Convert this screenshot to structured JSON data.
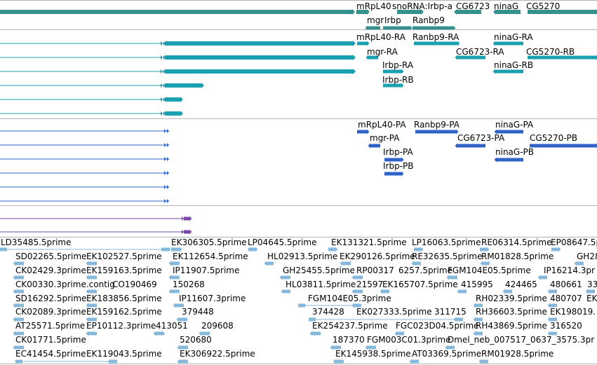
{
  "colors": {
    "gene": "#35918d",
    "rna": "#1aa0b0",
    "protein": "#2f63c8",
    "cds": "#7a49a8",
    "est": "#86b8dc",
    "divider": "#b4b4b4"
  },
  "gene_track": {
    "labels": [
      "mRpL40",
      "snoRNA:Irbp-a",
      "CG6723",
      "ninaG",
      "CG5270",
      "mgr",
      "Irbp",
      "Ranbp9"
    ]
  },
  "transcript_track": {
    "labels": [
      "mRpL40-RA",
      "Ranbp9-RA",
      "ninaG-RA",
      "mgr-RA",
      "CG6723-RA",
      "CG5270-RB",
      "Irbp-RA",
      "ninaG-RB",
      "Irbp-RB"
    ]
  },
  "protein_track": {
    "labels": [
      "mRpL40-PA",
      "Ranbp9-PA",
      "ninaG-PA",
      "mgr-PA",
      "CG6723-PA",
      "CG5270-PB",
      "Irbp-PA",
      "ninaG-PB",
      "Irbp-PB"
    ]
  },
  "est_track": {
    "labels": [
      "LD35485.5prime",
      "EK306305.5prime",
      "LP04645.5prime",
      "EK131321.5prime",
      "LP16063.5prime",
      "RE06314.5prime",
      "EP08647.5p",
      "SD02265.5prime",
      "EK102527.5prime",
      "EK112654.5prime",
      "HL02913.5prime",
      "EK290126.5prime",
      "RE32635.5prime",
      "RM01828.5prime",
      "GH28",
      "CK02429.3prime",
      "EK159163.5prime",
      "IP11907.5prime",
      "GH25455.5prime",
      "RP00317",
      "6257.5prime",
      "FGM104E05.5prime",
      "IP16214.3pr",
      "CK00330.3prime.contig",
      "CO190469",
      "150268",
      "HL03811.5prime",
      "21597",
      "EK165707.5prime",
      "415995",
      "424465",
      "480661",
      "33",
      "SD16292.5prime",
      "EK183856.5prime",
      "IP11607.3prime",
      "FGM104E05.3prime",
      "RH02339.5prime",
      "480707",
      "EK",
      "CK02089.3prime",
      "EK159162.5prime",
      "379448",
      "374428",
      "EK027333.5prime",
      "311715",
      "RH36603.5prime",
      "EK198019.",
      "AT25571.5prime",
      "EP10112.3prime",
      "413051",
      "209608",
      "EK254237.5prime",
      "FGC023D04.5prime",
      "RH43869.5prime",
      "316520",
      "CK01771.5prime",
      "520680",
      "187370",
      "FGM003C01.3prime",
      "Dmel_neb_007517_0637_3575.3pr",
      "EC41454.5prime",
      "EK119043.5prime",
      "EK306922.5prime",
      "EK145938.5prime",
      "AT03369.5prime",
      "RM01928.5prime"
    ]
  }
}
